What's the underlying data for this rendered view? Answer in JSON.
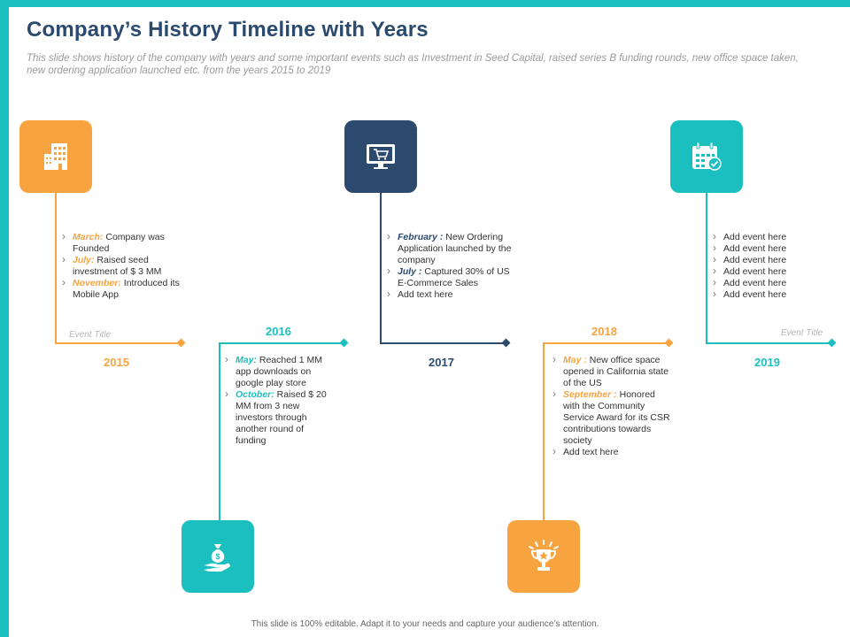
{
  "title": "Company’s History Timeline with Years",
  "subtitle": "This slide shows history of the company with years and some important events such as Investment in Seed Capital, raised series B funding rounds, new office space taken, new ordering application launched etc. from the years 2015 to 2019",
  "colors": {
    "orange": "#f7a440",
    "teal": "#1bbfbf",
    "navy": "#2b4a6e"
  },
  "milestones": [
    {
      "year": "2015",
      "icon": "office-building-icon",
      "events": [
        {
          "month": "March:",
          "text": " Company was Founded"
        },
        {
          "month": "July:",
          "text": " Raised seed investment of $ 3 MM"
        },
        {
          "month": "November:",
          "text": " Introduced its Mobile App"
        }
      ],
      "event_title": "Event Title"
    },
    {
      "year": "2016",
      "icon": "money-bag-hand-icon",
      "events": [
        {
          "month": "May:",
          "text": " Reached 1 MM app downloads on google play store"
        },
        {
          "month": "October:",
          "text": " Raised $ 20 MM  from 3 new investors through another round of funding"
        }
      ]
    },
    {
      "year": "2017",
      "icon": "monitor-cart-icon",
      "events": [
        {
          "month": "February :",
          "text": " New Ordering Application launched by the company"
        },
        {
          "month": "July :",
          "text": " Captured 30% of US E-Commerce  Sales"
        },
        {
          "month": "",
          "text": "Add text here"
        }
      ]
    },
    {
      "year": "2018",
      "icon": "trophy-icon",
      "events": [
        {
          "month": "May :",
          "text": " New office space opened in California state of the US"
        },
        {
          "month": "September :",
          "text": "  Honored with the Community Service Award for its CSR  contributions towards society"
        },
        {
          "month": "",
          "text": "Add text here"
        }
      ]
    },
    {
      "year": "2019",
      "icon": "calendar-check-icon",
      "events": [
        {
          "month": "",
          "text": "Add event here"
        },
        {
          "month": "",
          "text": "Add event here"
        },
        {
          "month": "",
          "text": "Add event here"
        },
        {
          "month": "",
          "text": "Add event here"
        },
        {
          "month": "",
          "text": "Add event here"
        },
        {
          "month": "",
          "text": "Add event here"
        }
      ],
      "event_title": "Event Title"
    }
  ],
  "footer": "This slide is 100% editable.  Adapt it to your needs and capture your audience’s attention."
}
